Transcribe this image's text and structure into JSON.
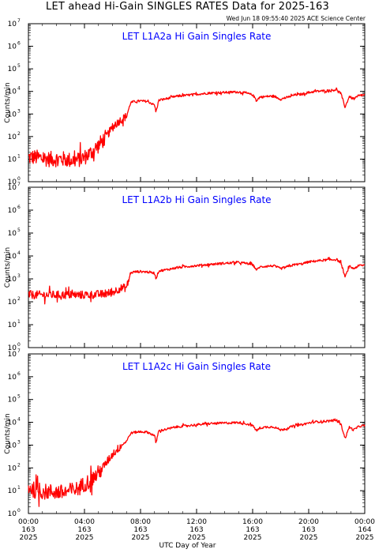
{
  "header": {
    "title": "LET ahead Hi-Gain SINGLES RATES Data for 2025-163",
    "timestamp": "Wed Jun 18 09:55:40 2025 ACE Science Center"
  },
  "colors": {
    "series": "#ff0000",
    "panel_title": "#0000ff",
    "axes": "#000000"
  },
  "chart_data": [
    {
      "type": "line",
      "title": "LET L1A2a Hi Gain Singles Rate",
      "ylabel": "Counts/min",
      "yscale": "log",
      "ylim": [
        1,
        10000000
      ],
      "xlim": [
        0,
        24
      ],
      "grid": false,
      "series": [
        {
          "x": [
            0,
            0.5,
            1,
            1.5,
            2,
            2.5,
            3,
            3.5,
            4,
            4.5,
            5,
            5.5,
            6,
            6.5,
            7,
            7.3,
            7.5,
            8,
            8.5,
            9,
            9.1,
            9.3,
            10,
            10.5,
            11,
            12,
            13,
            14,
            15,
            15.5,
            16,
            16.3,
            16.5,
            17,
            17.5,
            18,
            18.5,
            19,
            19.5,
            20,
            20.5,
            21,
            21.5,
            22,
            22.3,
            22.6,
            22.9,
            23.2,
            23.6,
            24
          ],
          "y": [
            12,
            12,
            11,
            10,
            10,
            10,
            9,
            9,
            12,
            20,
            40,
            90,
            250,
            500,
            800,
            3200,
            3500,
            3800,
            3600,
            2500,
            1200,
            4000,
            5000,
            6000,
            6500,
            7500,
            8500,
            9000,
            9500,
            8500,
            7000,
            4000,
            5500,
            6000,
            6200,
            4500,
            5500,
            7000,
            7500,
            9000,
            10000,
            10500,
            11000,
            12000,
            8000,
            2000,
            6000,
            4500,
            6500,
            7000
          ]
        }
      ]
    },
    {
      "type": "line",
      "title": "LET L1A2b Hi Gain Singles Rate",
      "ylabel": "Counts/min",
      "yscale": "log",
      "ylim": [
        1,
        10000000
      ],
      "xlim": [
        0,
        24
      ],
      "grid": false,
      "series": [
        {
          "x": [
            0,
            1,
            2,
            3,
            4,
            5,
            5.5,
            6,
            6.5,
            7,
            7.3,
            7.5,
            8,
            8.5,
            9,
            9.1,
            9.3,
            10,
            10.5,
            11,
            12,
            13,
            14,
            15,
            15.5,
            16,
            16.3,
            16.5,
            17,
            17.5,
            18,
            18.5,
            19,
            19.5,
            20,
            20.5,
            21,
            21.5,
            22,
            22.3,
            22.6,
            22.9,
            23.2,
            23.6,
            24
          ],
          "y": [
            200,
            200,
            200,
            200,
            200,
            210,
            220,
            260,
            380,
            420,
            1800,
            2000,
            2100,
            2000,
            1800,
            1000,
            2200,
            2600,
            3000,
            3300,
            3800,
            4300,
            4800,
            5200,
            4800,
            4200,
            2400,
            3300,
            3600,
            3700,
            2800,
            3400,
            4200,
            4500,
            5500,
            6000,
            6500,
            6800,
            7000,
            5000,
            1200,
            3500,
            2800,
            3800,
            4000
          ]
        }
      ]
    },
    {
      "type": "line",
      "title": "LET L1A2c Hi Gain Singles Rate",
      "ylabel": "Counts/min",
      "yscale": "log",
      "ylim": [
        1,
        10000000
      ],
      "xlim": [
        0,
        24
      ],
      "grid": false,
      "series": [
        {
          "x": [
            0,
            0.5,
            1,
            1.5,
            2,
            2.5,
            3,
            3.5,
            4,
            4.5,
            5,
            5.5,
            6,
            6.5,
            7,
            7.3,
            7.5,
            8,
            8.5,
            9,
            9.1,
            9.3,
            10,
            10.5,
            11,
            12,
            13,
            14,
            15,
            15.5,
            16,
            16.3,
            16.5,
            17,
            17.5,
            18,
            18.5,
            19,
            19.5,
            20,
            20.5,
            21,
            21.5,
            22,
            22.3,
            22.6,
            22.9,
            23.2,
            23.6,
            24
          ],
          "y": [
            15,
            10,
            9,
            9,
            9,
            8,
            10,
            12,
            20,
            30,
            60,
            150,
            400,
            800,
            1500,
            3300,
            3600,
            3900,
            3700,
            2600,
            1200,
            4200,
            5200,
            6200,
            6800,
            7800,
            8800,
            9300,
            9800,
            8800,
            7200,
            4200,
            5600,
            6200,
            6400,
            4600,
            5600,
            7200,
            7800,
            9300,
            10500,
            11000,
            11500,
            12500,
            8200,
            2000,
            6200,
            4600,
            6700,
            7200
          ]
        }
      ]
    }
  ],
  "xaxis": {
    "label": "UTC Day of Year",
    "ticks": [
      {
        "value": 0,
        "time": "00:00",
        "doy": "163",
        "year": "2025"
      },
      {
        "value": 4,
        "time": "04:00",
        "doy": "163",
        "year": "2025"
      },
      {
        "value": 8,
        "time": "08:00",
        "doy": "163",
        "year": "2025"
      },
      {
        "value": 12,
        "time": "12:00",
        "doy": "163",
        "year": "2025"
      },
      {
        "value": 16,
        "time": "16:00",
        "doy": "163",
        "year": "2025"
      },
      {
        "value": 20,
        "time": "20:00",
        "doy": "163",
        "year": "2025"
      },
      {
        "value": 24,
        "time": "00:00",
        "doy": "164",
        "year": "2025"
      }
    ]
  }
}
